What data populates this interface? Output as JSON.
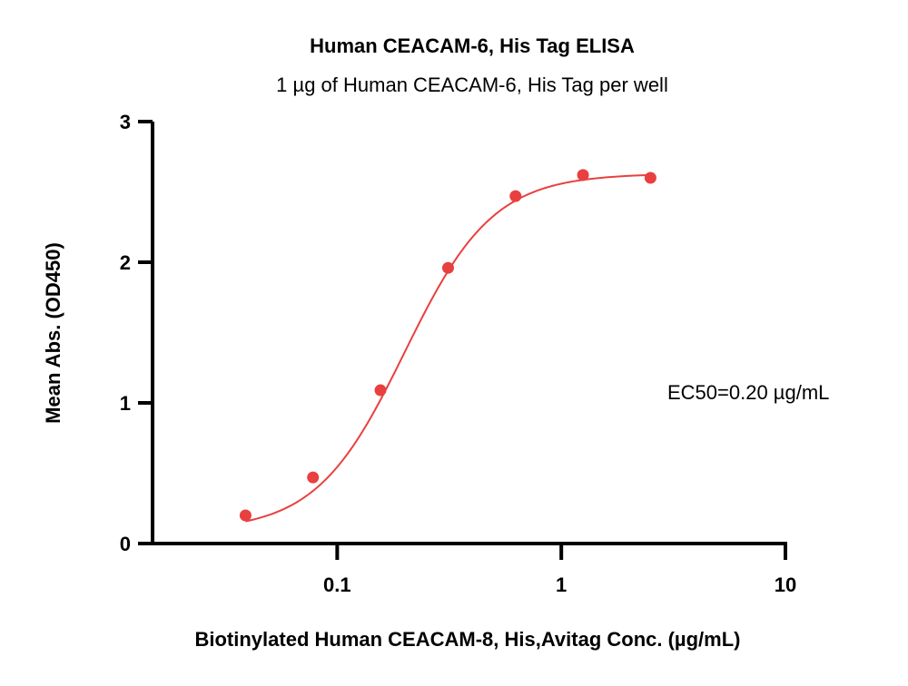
{
  "chart_data": {
    "type": "scatter",
    "title": "Human CEACAM-6, His Tag ELISA",
    "subtitle": "1 µg of Human CEACAM-6, His Tag per well",
    "xlabel": "Biotinylated Human CEACAM-8, His,Avitag Conc. (µg/mL)",
    "ylabel": "Mean Abs. (OD450)",
    "x_scale": "log",
    "xlim": [
      0.015,
      10
    ],
    "ylim": [
      0,
      3
    ],
    "x_ticks": [
      0.1,
      1,
      10
    ],
    "x_tick_labels": [
      "0.1",
      "1",
      "10"
    ],
    "y_ticks": [
      0,
      1,
      2,
      3
    ],
    "y_tick_labels": [
      "0",
      "1",
      "2",
      "3"
    ],
    "grid": false,
    "annotation": "EC50=0.20 µg/mL",
    "colors": {
      "series": "#e8403f"
    },
    "series": [
      {
        "x": [
          0.039,
          0.078,
          0.156,
          0.3125,
          0.625,
          1.25,
          2.5
        ],
        "y": [
          0.2,
          0.47,
          1.09,
          1.96,
          2.47,
          2.62,
          2.6
        ]
      }
    ],
    "fit": {
      "model": "4PL",
      "bottom": 0.09,
      "top": 2.63,
      "ec50": 0.2,
      "hill": 2.2,
      "x_range": [
        0.039,
        2.5
      ]
    }
  }
}
